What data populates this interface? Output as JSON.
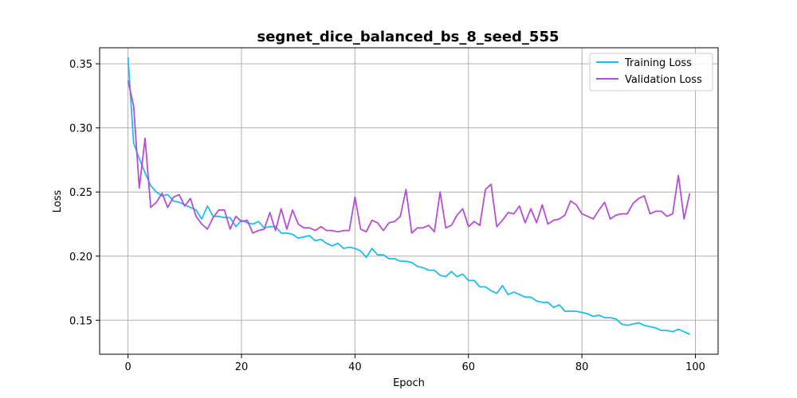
{
  "chart_data": {
    "type": "line",
    "title": "segnet_dice_balanced_bs_8_seed_555",
    "xlabel": "Epoch",
    "ylabel": "Loss",
    "xlim": [
      -5,
      104
    ],
    "ylim": [
      0.1235,
      0.3625
    ],
    "xticks": [
      0,
      20,
      40,
      60,
      80,
      100
    ],
    "yticks": [
      0.15,
      0.2,
      0.25,
      0.3,
      0.35
    ],
    "ytick_labels": [
      "0.15",
      "0.20",
      "0.25",
      "0.30",
      "0.35"
    ],
    "grid": true,
    "legend_position": "top-right",
    "x": [
      0,
      1,
      2,
      3,
      4,
      5,
      6,
      7,
      8,
      9,
      10,
      11,
      12,
      13,
      14,
      15,
      16,
      17,
      18,
      19,
      20,
      21,
      22,
      23,
      24,
      25,
      26,
      27,
      28,
      29,
      30,
      31,
      32,
      33,
      34,
      35,
      36,
      37,
      38,
      39,
      40,
      41,
      42,
      43,
      44,
      45,
      46,
      47,
      48,
      49,
      50,
      51,
      52,
      53,
      54,
      55,
      56,
      57,
      58,
      59,
      60,
      61,
      62,
      63,
      64,
      65,
      66,
      67,
      68,
      69,
      70,
      71,
      72,
      73,
      74,
      75,
      76,
      77,
      78,
      79,
      80,
      81,
      82,
      83,
      84,
      85,
      86,
      87,
      88,
      89,
      90,
      91,
      92,
      93,
      94,
      95,
      96,
      97,
      98,
      99
    ],
    "series": [
      {
        "name": "Training Loss",
        "color": "#1ebcf0",
        "values": [
          0.355,
          0.288,
          0.276,
          0.265,
          0.255,
          0.25,
          0.247,
          0.248,
          0.243,
          0.242,
          0.24,
          0.238,
          0.236,
          0.229,
          0.239,
          0.231,
          0.231,
          0.23,
          0.23,
          0.223,
          0.228,
          0.226,
          0.225,
          0.227,
          0.222,
          0.223,
          0.223,
          0.218,
          0.218,
          0.217,
          0.214,
          0.215,
          0.216,
          0.212,
          0.213,
          0.21,
          0.208,
          0.21,
          0.206,
          0.207,
          0.206,
          0.204,
          0.199,
          0.206,
          0.201,
          0.201,
          0.198,
          0.198,
          0.196,
          0.196,
          0.195,
          0.192,
          0.191,
          0.189,
          0.189,
          0.185,
          0.184,
          0.188,
          0.184,
          0.186,
          0.181,
          0.181,
          0.176,
          0.176,
          0.173,
          0.171,
          0.177,
          0.17,
          0.172,
          0.17,
          0.168,
          0.168,
          0.165,
          0.164,
          0.164,
          0.16,
          0.162,
          0.157,
          0.157,
          0.157,
          0.156,
          0.155,
          0.153,
          0.154,
          0.152,
          0.152,
          0.151,
          0.147,
          0.146,
          0.147,
          0.148,
          0.146,
          0.145,
          0.144,
          0.142,
          0.142,
          0.141,
          0.143,
          0.141,
          0.139
        ]
      },
      {
        "name": "Validation Loss",
        "color": "#b44ed8",
        "values": [
          0.337,
          0.317,
          0.253,
          0.292,
          0.238,
          0.242,
          0.249,
          0.238,
          0.246,
          0.248,
          0.239,
          0.245,
          0.231,
          0.225,
          0.221,
          0.23,
          0.236,
          0.236,
          0.221,
          0.231,
          0.227,
          0.228,
          0.218,
          0.22,
          0.221,
          0.234,
          0.22,
          0.237,
          0.221,
          0.236,
          0.225,
          0.222,
          0.222,
          0.22,
          0.223,
          0.22,
          0.22,
          0.219,
          0.22,
          0.22,
          0.246,
          0.221,
          0.219,
          0.228,
          0.226,
          0.22,
          0.226,
          0.227,
          0.231,
          0.252,
          0.218,
          0.222,
          0.222,
          0.224,
          0.219,
          0.25,
          0.222,
          0.224,
          0.232,
          0.237,
          0.223,
          0.227,
          0.224,
          0.252,
          0.256,
          0.223,
          0.228,
          0.234,
          0.233,
          0.239,
          0.226,
          0.237,
          0.226,
          0.24,
          0.225,
          0.228,
          0.229,
          0.232,
          0.243,
          0.24,
          0.233,
          0.231,
          0.229,
          0.236,
          0.242,
          0.229,
          0.232,
          0.233,
          0.233,
          0.241,
          0.245,
          0.247,
          0.233,
          0.235,
          0.235,
          0.231,
          0.233,
          0.263,
          0.229,
          0.249
        ]
      }
    ]
  }
}
